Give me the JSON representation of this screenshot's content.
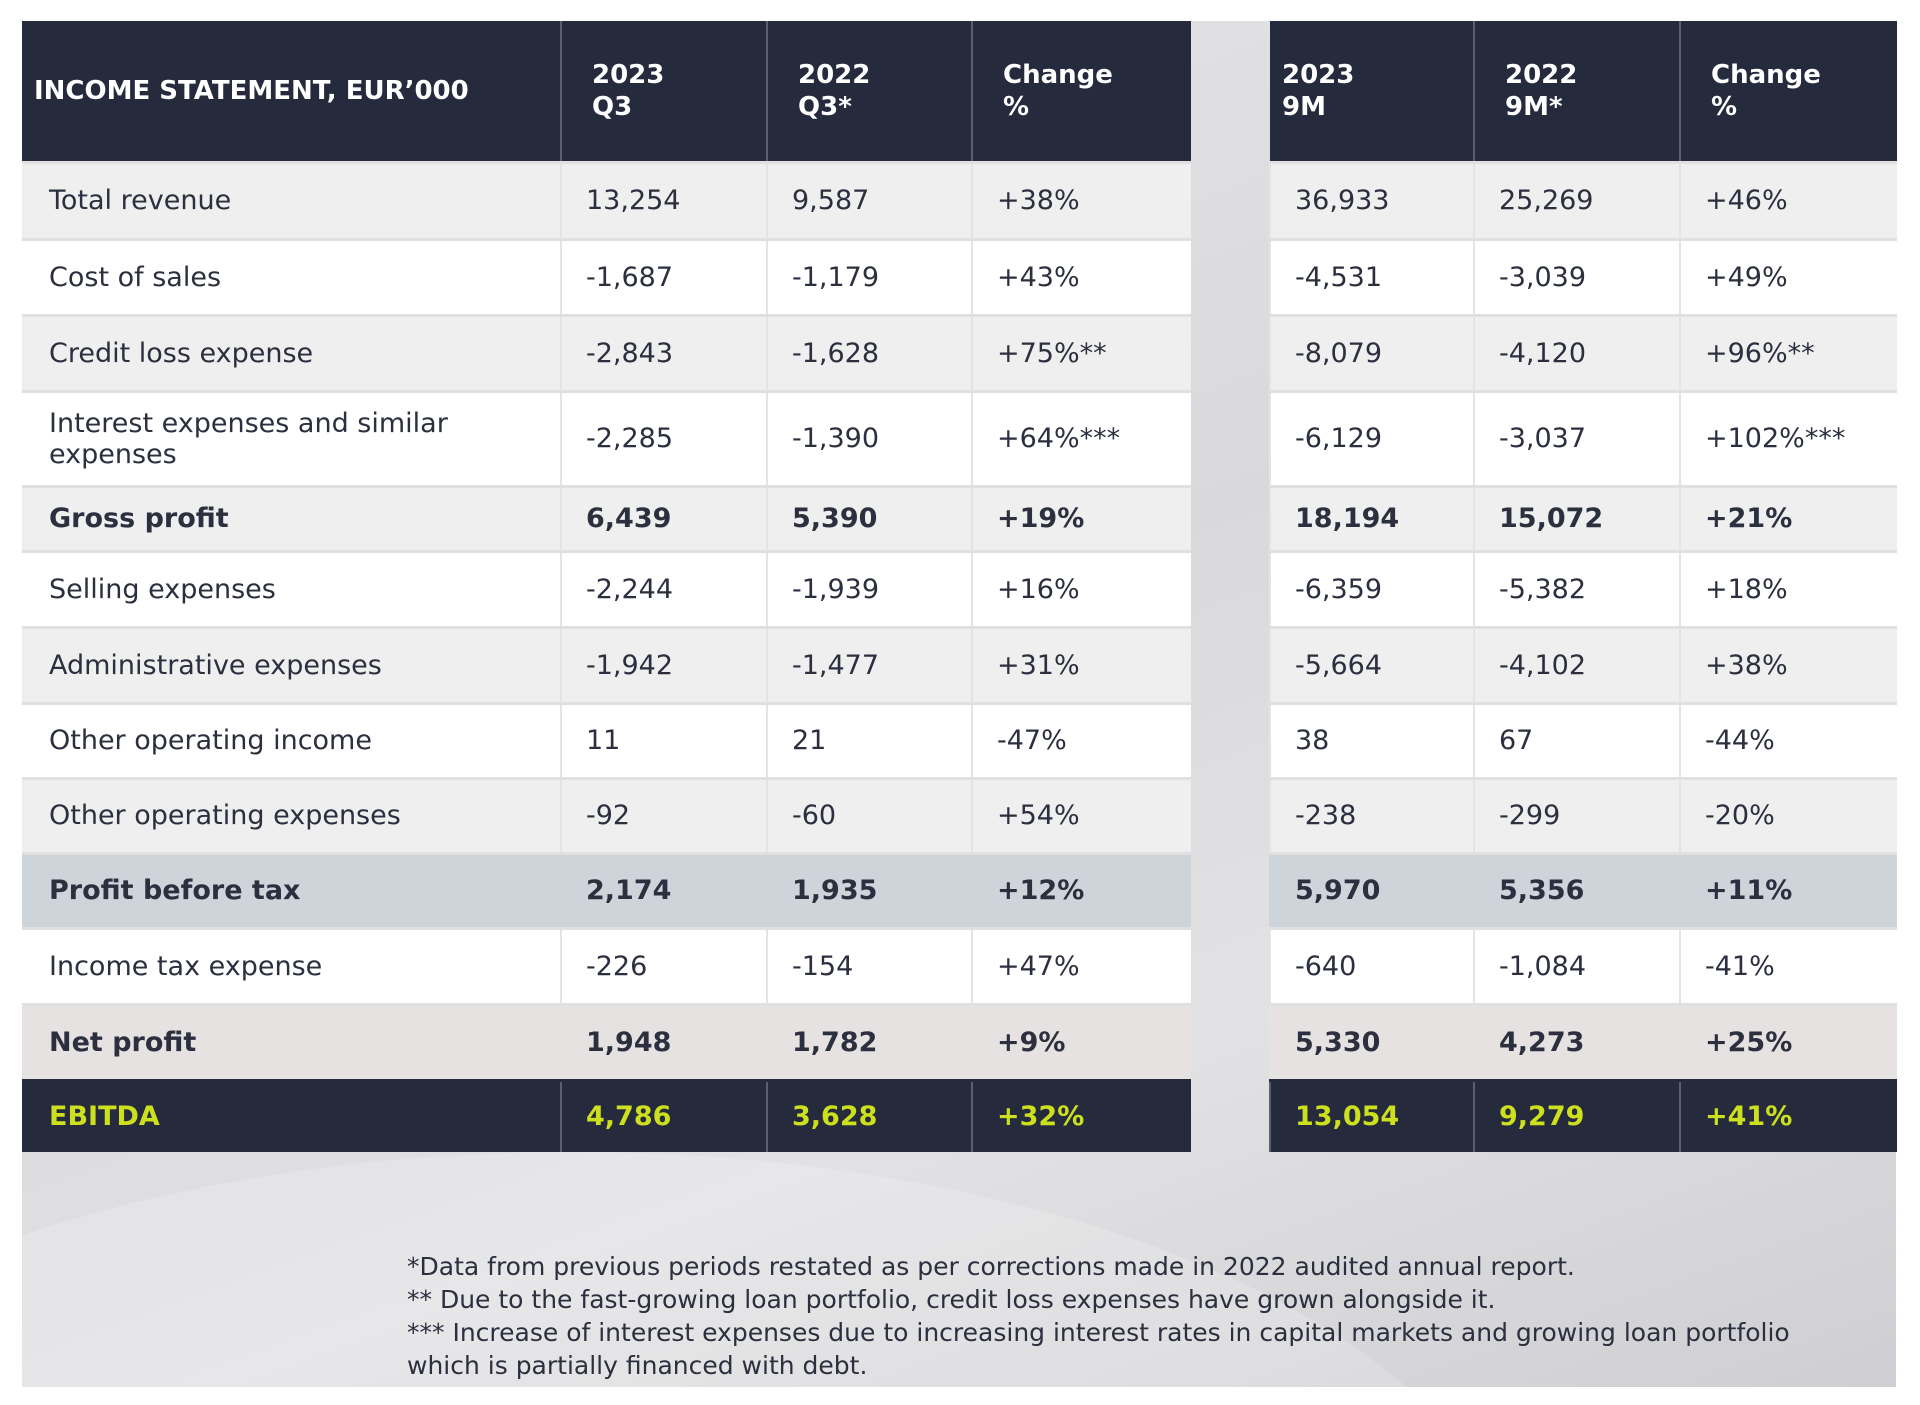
{
  "header": {
    "title": "INCOME STATEMENT, EUR’000",
    "q_cols": [
      "2023\nQ3",
      "2022\nQ3*",
      "Change\n%"
    ],
    "m_cols": [
      "2023\n9M",
      "2022\n9M*",
      "Change\n%"
    ]
  },
  "rows": [
    {
      "label": "Total revenue",
      "q": [
        "13,254",
        "9,587",
        "+38%"
      ],
      "m": [
        "36,933",
        "25,269",
        "+46%"
      ],
      "style": "odd"
    },
    {
      "label": "Cost of sales",
      "q": [
        "-1,687",
        "-1,179",
        "+43%"
      ],
      "m": [
        "-4,531",
        "-3,039",
        "+49%"
      ],
      "style": "even"
    },
    {
      "label": "Credit loss expense",
      "q": [
        "-2,843",
        "-1,628",
        "+75%**"
      ],
      "m": [
        "-8,079",
        "-4,120",
        "+96%**"
      ],
      "style": "odd"
    },
    {
      "label": "Interest expenses and similar expenses",
      "q": [
        "-2,285",
        "-1,390",
        "+64%***"
      ],
      "m": [
        "-6,129",
        "-3,037",
        "+102%***"
      ],
      "style": "even"
    },
    {
      "label": "Gross profit",
      "q": [
        "6,439",
        "5,390",
        "+19%"
      ],
      "m": [
        "18,194",
        "15,072",
        "+21%"
      ],
      "style": "odd bold"
    },
    {
      "label": "Selling expenses",
      "q": [
        "-2,244",
        "-1,939",
        "+16%"
      ],
      "m": [
        "-6,359",
        "-5,382",
        "+18%"
      ],
      "style": "even"
    },
    {
      "label": "Administrative expenses",
      "q": [
        "-1,942",
        "-1,477",
        "+31%"
      ],
      "m": [
        "-5,664",
        "-4,102",
        "+38%"
      ],
      "style": "odd"
    },
    {
      "label": "Other operating income",
      "q": [
        "11",
        "21",
        "-47%"
      ],
      "m": [
        "38",
        "67",
        "-44%"
      ],
      "style": "even"
    },
    {
      "label": "Other operating expenses",
      "q": [
        "-92",
        "-60",
        "+54%"
      ],
      "m": [
        "-238",
        "-299",
        "-20%"
      ],
      "style": "odd"
    },
    {
      "label": "Profit before tax",
      "q": [
        "2,174",
        "1,935",
        "+12%"
      ],
      "m": [
        "5,970",
        "5,356",
        "+11%"
      ],
      "style": "pbt bold"
    },
    {
      "label": "Income tax expense",
      "q": [
        "-226",
        "-154",
        "+47%"
      ],
      "m": [
        "-640",
        "-1,084",
        "-41%"
      ],
      "style": "even"
    },
    {
      "label": "Net profit",
      "q": [
        "1,948",
        "1,782",
        "+9%"
      ],
      "m": [
        "5,330",
        "4,273",
        "+25%"
      ],
      "style": "net bold"
    },
    {
      "label": "EBITDA",
      "q": [
        "4,786",
        "3,628",
        "+32%"
      ],
      "m": [
        "13,054",
        "9,279",
        "+41%"
      ],
      "style": "ebitda"
    }
  ],
  "footnotes": [
    "*Data from previous periods restated as per corrections made in 2022 audited annual report.",
    "** Due to the fast-growing loan portfolio, credit loss expenses have grown alongside it.",
    "*** Increase of interest expenses due to increasing interest rates in capital markets and growing loan portfolio which is partially financed with debt."
  ],
  "colors": {
    "navy": "#252a3d",
    "ebitda_text": "#cde01e",
    "pbt_bg": "#cdd5da"
  }
}
